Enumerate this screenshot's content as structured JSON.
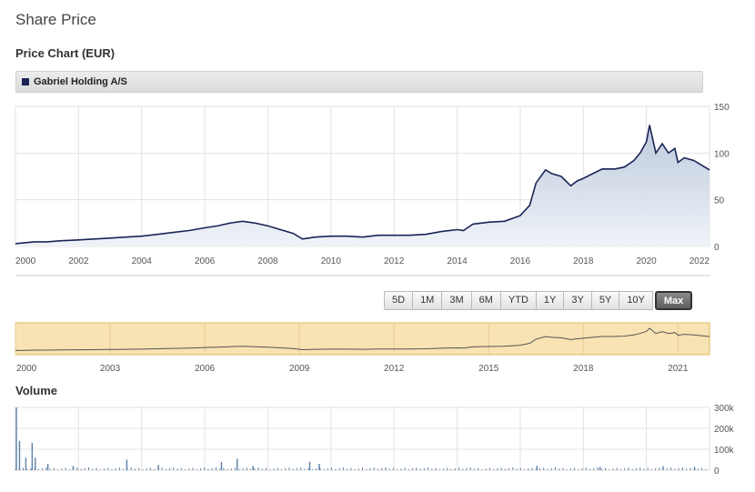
{
  "page": {
    "title": "Share Price"
  },
  "price_section": {
    "title": "Price Chart (EUR)"
  },
  "legend": {
    "label": "Gabriel Holding A/S",
    "color": "#1a2456"
  },
  "range_buttons": [
    {
      "label": "5D",
      "active": false
    },
    {
      "label": "1M",
      "active": false
    },
    {
      "label": "3M",
      "active": false
    },
    {
      "label": "6M",
      "active": false
    },
    {
      "label": "YTD",
      "active": false
    },
    {
      "label": "1Y",
      "active": false
    },
    {
      "label": "3Y",
      "active": false
    },
    {
      "label": "5Y",
      "active": false
    },
    {
      "label": "10Y",
      "active": false
    },
    {
      "label": "Max",
      "active": true
    }
  ],
  "volume_section": {
    "title": "Volume"
  },
  "colors": {
    "line": "#1a2456",
    "navigator_bg": "#f8e3b4",
    "volume": "#5a7fa6"
  },
  "chart_data": [
    {
      "type": "area",
      "name": "price",
      "x_ticks": [
        "2000",
        "2002",
        "2004",
        "2006",
        "2008",
        "2010",
        "2012",
        "2014",
        "2016",
        "2018",
        "2020",
        "2022"
      ],
      "y_ticks": [
        "0",
        "50",
        "100",
        "150"
      ],
      "ylim": [
        0,
        150
      ],
      "xlim": [
        2000,
        2022
      ],
      "series": [
        {
          "x": [
            2000.0,
            2000.3,
            2000.6,
            2001.0,
            2001.4,
            2002.0,
            2002.5,
            2003.0,
            2003.5,
            2004.0,
            2004.5,
            2005.0,
            2005.5,
            2006.0,
            2006.4,
            2006.8,
            2007.2,
            2007.6,
            2008.0,
            2008.4,
            2008.8,
            2009.1,
            2009.5,
            2010.0,
            2010.5,
            2011.0,
            2011.5,
            2012.0,
            2012.5,
            2013.0,
            2013.5,
            2014.0,
            2014.2,
            2014.5,
            2015.0,
            2015.5,
            2016.0,
            2016.3,
            2016.5,
            2016.8,
            2017.0,
            2017.3,
            2017.6,
            2017.8,
            2018.0,
            2018.3,
            2018.6,
            2019.0,
            2019.3,
            2019.6,
            2019.8,
            2020.0,
            2020.1,
            2020.3,
            2020.5,
            2020.7,
            2020.9,
            2021.0,
            2021.2,
            2021.5,
            2021.8,
            2022.0
          ],
          "y": [
            3,
            4,
            5,
            5,
            6,
            7,
            8,
            9,
            10,
            11,
            13,
            15,
            17,
            20,
            22,
            25,
            27,
            25,
            22,
            18,
            14,
            8,
            10,
            11,
            11,
            10,
            12,
            12,
            12,
            13,
            16,
            18,
            17,
            24,
            26,
            27,
            33,
            44,
            68,
            82,
            78,
            75,
            65,
            70,
            73,
            78,
            83,
            83,
            85,
            92,
            100,
            112,
            130,
            100,
            110,
            100,
            105,
            90,
            95,
            92,
            86,
            82
          ]
        }
      ]
    },
    {
      "type": "line",
      "name": "navigator",
      "x_ticks": [
        "2000",
        "2003",
        "2006",
        "2009",
        "2012",
        "2015",
        "2018",
        "2021"
      ]
    },
    {
      "type": "bar",
      "name": "volume",
      "y_ticks": [
        "0",
        "100k",
        "200k",
        "300k"
      ],
      "ylim": [
        0,
        300000
      ],
      "spikes": [
        {
          "x": 2000.0,
          "v": 300000
        },
        {
          "x": 2000.1,
          "v": 140000
        },
        {
          "x": 2000.3,
          "v": 60000
        },
        {
          "x": 2000.5,
          "v": 130000
        },
        {
          "x": 2000.6,
          "v": 60000
        },
        {
          "x": 2001.0,
          "v": 30000
        },
        {
          "x": 2001.8,
          "v": 20000
        },
        {
          "x": 2003.5,
          "v": 50000
        },
        {
          "x": 2004.5,
          "v": 25000
        },
        {
          "x": 2006.5,
          "v": 40000
        },
        {
          "x": 2007.0,
          "v": 55000
        },
        {
          "x": 2007.5,
          "v": 20000
        },
        {
          "x": 2009.3,
          "v": 40000
        },
        {
          "x": 2009.6,
          "v": 30000
        },
        {
          "x": 2016.5,
          "v": 20000
        },
        {
          "x": 2018.5,
          "v": 15000
        },
        {
          "x": 2020.5,
          "v": 20000
        },
        {
          "x": 2021.5,
          "v": 15000
        }
      ]
    }
  ]
}
